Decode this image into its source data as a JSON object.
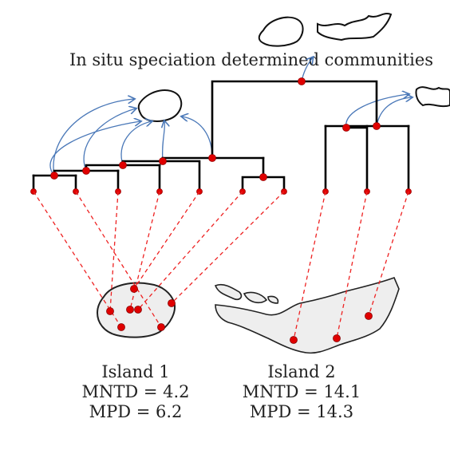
{
  "title": "In situ speciation determined communities",
  "islands": [
    {
      "name": "Island 1",
      "mntd": "MNTD = 4.2",
      "mpd": "MPD = 6.2"
    },
    {
      "name": "Island 2",
      "mntd": "MNTD = 14.1",
      "mpd": "MPD = 14.3"
    }
  ],
  "colors": {
    "tree": "#000000",
    "node": "#e00000",
    "dashed_link": "#ee2222",
    "speciation_arrow": "#4a78b8",
    "island_fill": "#eeeeee",
    "island_stroke": "#222222"
  }
}
